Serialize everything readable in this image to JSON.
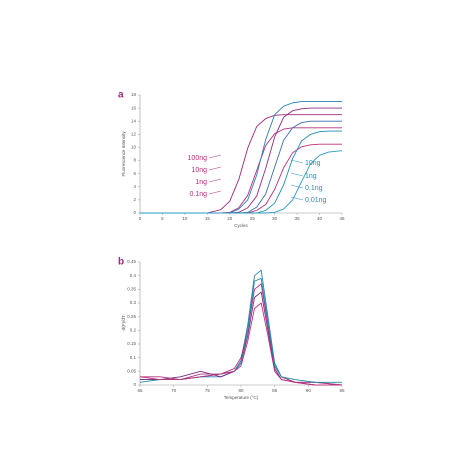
{
  "chart_data": [
    {
      "type": "line",
      "panel_label": "a",
      "xlabel": "Cycles",
      "ylabel": "Fluorescence Intensity",
      "x": [
        0,
        5,
        10,
        15,
        18,
        20,
        22,
        24,
        26,
        28,
        30,
        32,
        34,
        36,
        38,
        40,
        42,
        45
      ],
      "xlim": [
        0,
        45
      ],
      "xticks": [
        0,
        5,
        10,
        15,
        20,
        25,
        30,
        35,
        40,
        45
      ],
      "ylim": [
        0,
        18
      ],
      "yticks": [
        0,
        2,
        4,
        6,
        8,
        10,
        12,
        14,
        16,
        18
      ],
      "series": [
        {
          "color": "#a0287a",
          "values": [
            0,
            0,
            0,
            0,
            0.5,
            1.8,
            5.1,
            9.9,
            13.2,
            14.4,
            14.9,
            15,
            15,
            15,
            15,
            15,
            15,
            15
          ]
        },
        {
          "color": "#b5307f",
          "values": [
            0,
            0,
            0,
            0,
            0,
            0.1,
            0.8,
            2.7,
            6.5,
            10.3,
            12.1,
            12.8,
            13,
            13,
            13,
            13,
            13,
            13
          ]
        },
        {
          "color": "#8e2a80",
          "values": [
            0,
            0,
            0,
            0,
            0,
            0,
            0.1,
            0.8,
            2.6,
            6.8,
            11.6,
            14.6,
            15.6,
            15.9,
            16,
            16,
            16,
            16
          ]
        },
        {
          "color": "#c0307a",
          "values": [
            0,
            0,
            0,
            0,
            0,
            0,
            0,
            0,
            0.4,
            1.3,
            3.6,
            6.9,
            9.2,
            10.1,
            10.4,
            10.5,
            10.5,
            10.5
          ]
        },
        {
          "color": "#2f7fb8",
          "values": [
            0,
            0,
            0,
            0,
            0,
            0,
            0.6,
            2,
            5.8,
            11.2,
            15,
            16.3,
            16.8,
            17,
            17,
            17,
            17,
            17
          ]
        },
        {
          "color": "#3a6fb0",
          "values": [
            0,
            0,
            0,
            0,
            0,
            0,
            0,
            0.1,
            0.9,
            2.9,
            7,
            11.1,
            13,
            13.8,
            14,
            14,
            14,
            14
          ]
        },
        {
          "color": "#1f8fb0",
          "values": [
            0,
            0,
            0,
            0,
            0,
            0,
            0,
            0,
            0,
            0.4,
            1.5,
            4.3,
            8.3,
            11,
            12,
            12.4,
            12.5,
            12.5
          ]
        },
        {
          "color": "#2a9ac0",
          "values": [
            0,
            0,
            0,
            0,
            0,
            0,
            0,
            0,
            0,
            0,
            0.1,
            0.6,
            2,
            4.8,
            7.5,
            8.8,
            9.3,
            9.5
          ]
        }
      ],
      "annotations": [
        {
          "text": "100ng",
          "color": "#b0307a"
        },
        {
          "text": "10ng",
          "color": "#b0307a"
        },
        {
          "text": "1ng",
          "color": "#b0307a"
        },
        {
          "text": "0.1ng",
          "color": "#b0307a"
        },
        {
          "text": "10ng",
          "color": "#2a8ac0"
        },
        {
          "text": "1ng",
          "color": "#2a8ac0"
        },
        {
          "text": "0.1ng",
          "color": "#2a8ac0"
        },
        {
          "text": "0.01ng",
          "color": "#2a8ac0"
        }
      ]
    },
    {
      "type": "line",
      "panel_label": "b",
      "xlabel": "Temperature (°C)",
      "ylabel": "-d(F)/dT",
      "x": [
        65,
        68,
        71,
        74,
        77,
        79,
        80,
        81,
        82,
        83,
        84,
        85,
        86,
        88,
        91,
        95
      ],
      "xlim": [
        65,
        95
      ],
      "xticks": [
        65,
        70,
        75,
        80,
        85,
        90,
        95
      ],
      "ylim": [
        0,
        0.45
      ],
      "yticks": [
        0,
        0.05,
        0.1,
        0.15,
        0.2,
        0.25,
        0.3,
        0.35,
        0.4,
        0.45
      ],
      "series": [
        {
          "color": "#2f7fb8",
          "values": [
            0.02,
            0.02,
            0.02,
            0.03,
            0.03,
            0.05,
            0.09,
            0.22,
            0.4,
            0.42,
            0.25,
            0.08,
            0.03,
            0.01,
            0.01,
            0
          ]
        },
        {
          "color": "#b5307f",
          "values": [
            0.03,
            0.03,
            0.02,
            0.04,
            0.04,
            0.06,
            0.1,
            0.2,
            0.35,
            0.37,
            0.22,
            0.07,
            0.03,
            0.01,
            0.01,
            0
          ]
        },
        {
          "color": "#7a2a80",
          "values": [
            0.02,
            0.02,
            0.03,
            0.05,
            0.03,
            0.05,
            0.08,
            0.18,
            0.32,
            0.34,
            0.2,
            0.06,
            0.02,
            0.01,
            0,
            0
          ]
        },
        {
          "color": "#1f8fa0",
          "values": [
            0.01,
            0.02,
            0.02,
            0.03,
            0.04,
            0.05,
            0.08,
            0.2,
            0.38,
            0.39,
            0.23,
            0.07,
            0.03,
            0.02,
            0.01,
            0.01
          ]
        },
        {
          "color": "#c0307a",
          "values": [
            0.03,
            0.02,
            0.02,
            0.03,
            0.04,
            0.05,
            0.07,
            0.16,
            0.28,
            0.3,
            0.18,
            0.05,
            0.02,
            0.01,
            0,
            0
          ]
        }
      ]
    }
  ]
}
